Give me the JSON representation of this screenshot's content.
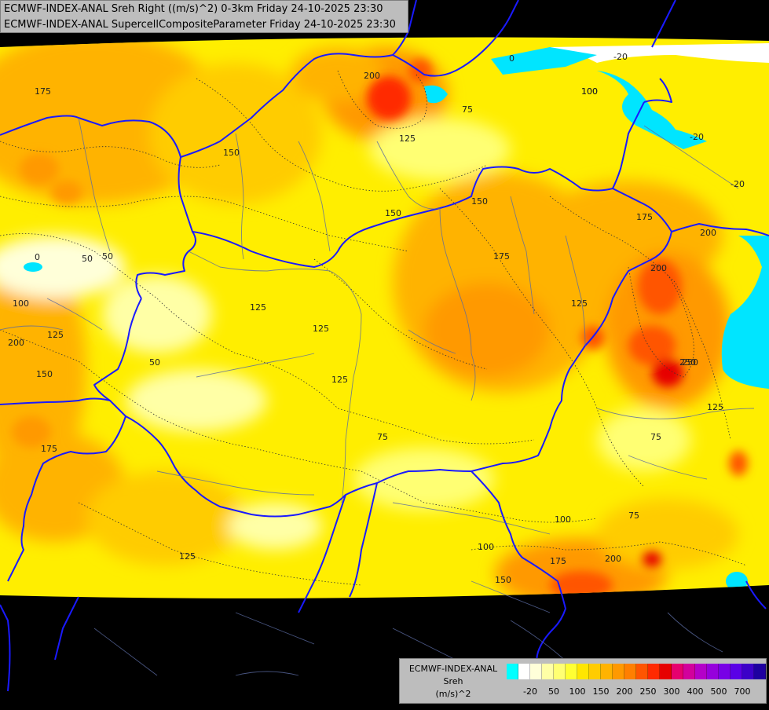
{
  "header": {
    "line1": "ECMWF-INDEX-ANAL Sreh Right ((m/s)^2) 0-3km Friday 24-10-2025 23:30",
    "line2": "ECMWF-INDEX-ANAL SupercellCompositeParameter Friday 24-10-2025 23:30"
  },
  "legend": {
    "title1": "ECMWF-INDEX-ANAL",
    "title2": "Sreh",
    "title3": "(m/s)^2",
    "colors": [
      "#00ffff",
      "#ffffff",
      "#ffffd9",
      "#ffffa6",
      "#ffff73",
      "#ffff33",
      "#ffe600",
      "#ffcc00",
      "#ffb300",
      "#ff9900",
      "#ff7f00",
      "#ff5500",
      "#ff2a00",
      "#e60000",
      "#e6006e",
      "#d2009c",
      "#b400c8",
      "#9600dc",
      "#7800e6",
      "#5a00e6",
      "#3c00c8",
      "#1e00a0"
    ],
    "labels": [
      {
        "text": "-20",
        "i": 1
      },
      {
        "text": "50",
        "i": 3
      },
      {
        "text": "100",
        "i": 5
      },
      {
        "text": "150",
        "i": 7
      },
      {
        "text": "200",
        "i": 9
      },
      {
        "text": "250",
        "i": 11
      },
      {
        "text": "300",
        "i": 13
      },
      {
        "text": "400",
        "i": 15
      },
      {
        "text": "500",
        "i": 17
      },
      {
        "text": "700",
        "i": 19
      }
    ]
  },
  "contour_labels": [
    "0",
    "-20",
    "-20",
    "-20",
    "50",
    "75",
    "100",
    "100",
    "125",
    "150",
    "175",
    "200",
    "250",
    "0",
    "50",
    "100",
    "200",
    "125",
    "150",
    "175",
    "125",
    "150",
    "175",
    "200",
    "75",
    "100",
    "125",
    "150",
    "175",
    "200",
    "250",
    "125",
    "75",
    "50",
    "125",
    "125",
    "75",
    "100",
    "125",
    "150",
    "175",
    "200"
  ]
}
